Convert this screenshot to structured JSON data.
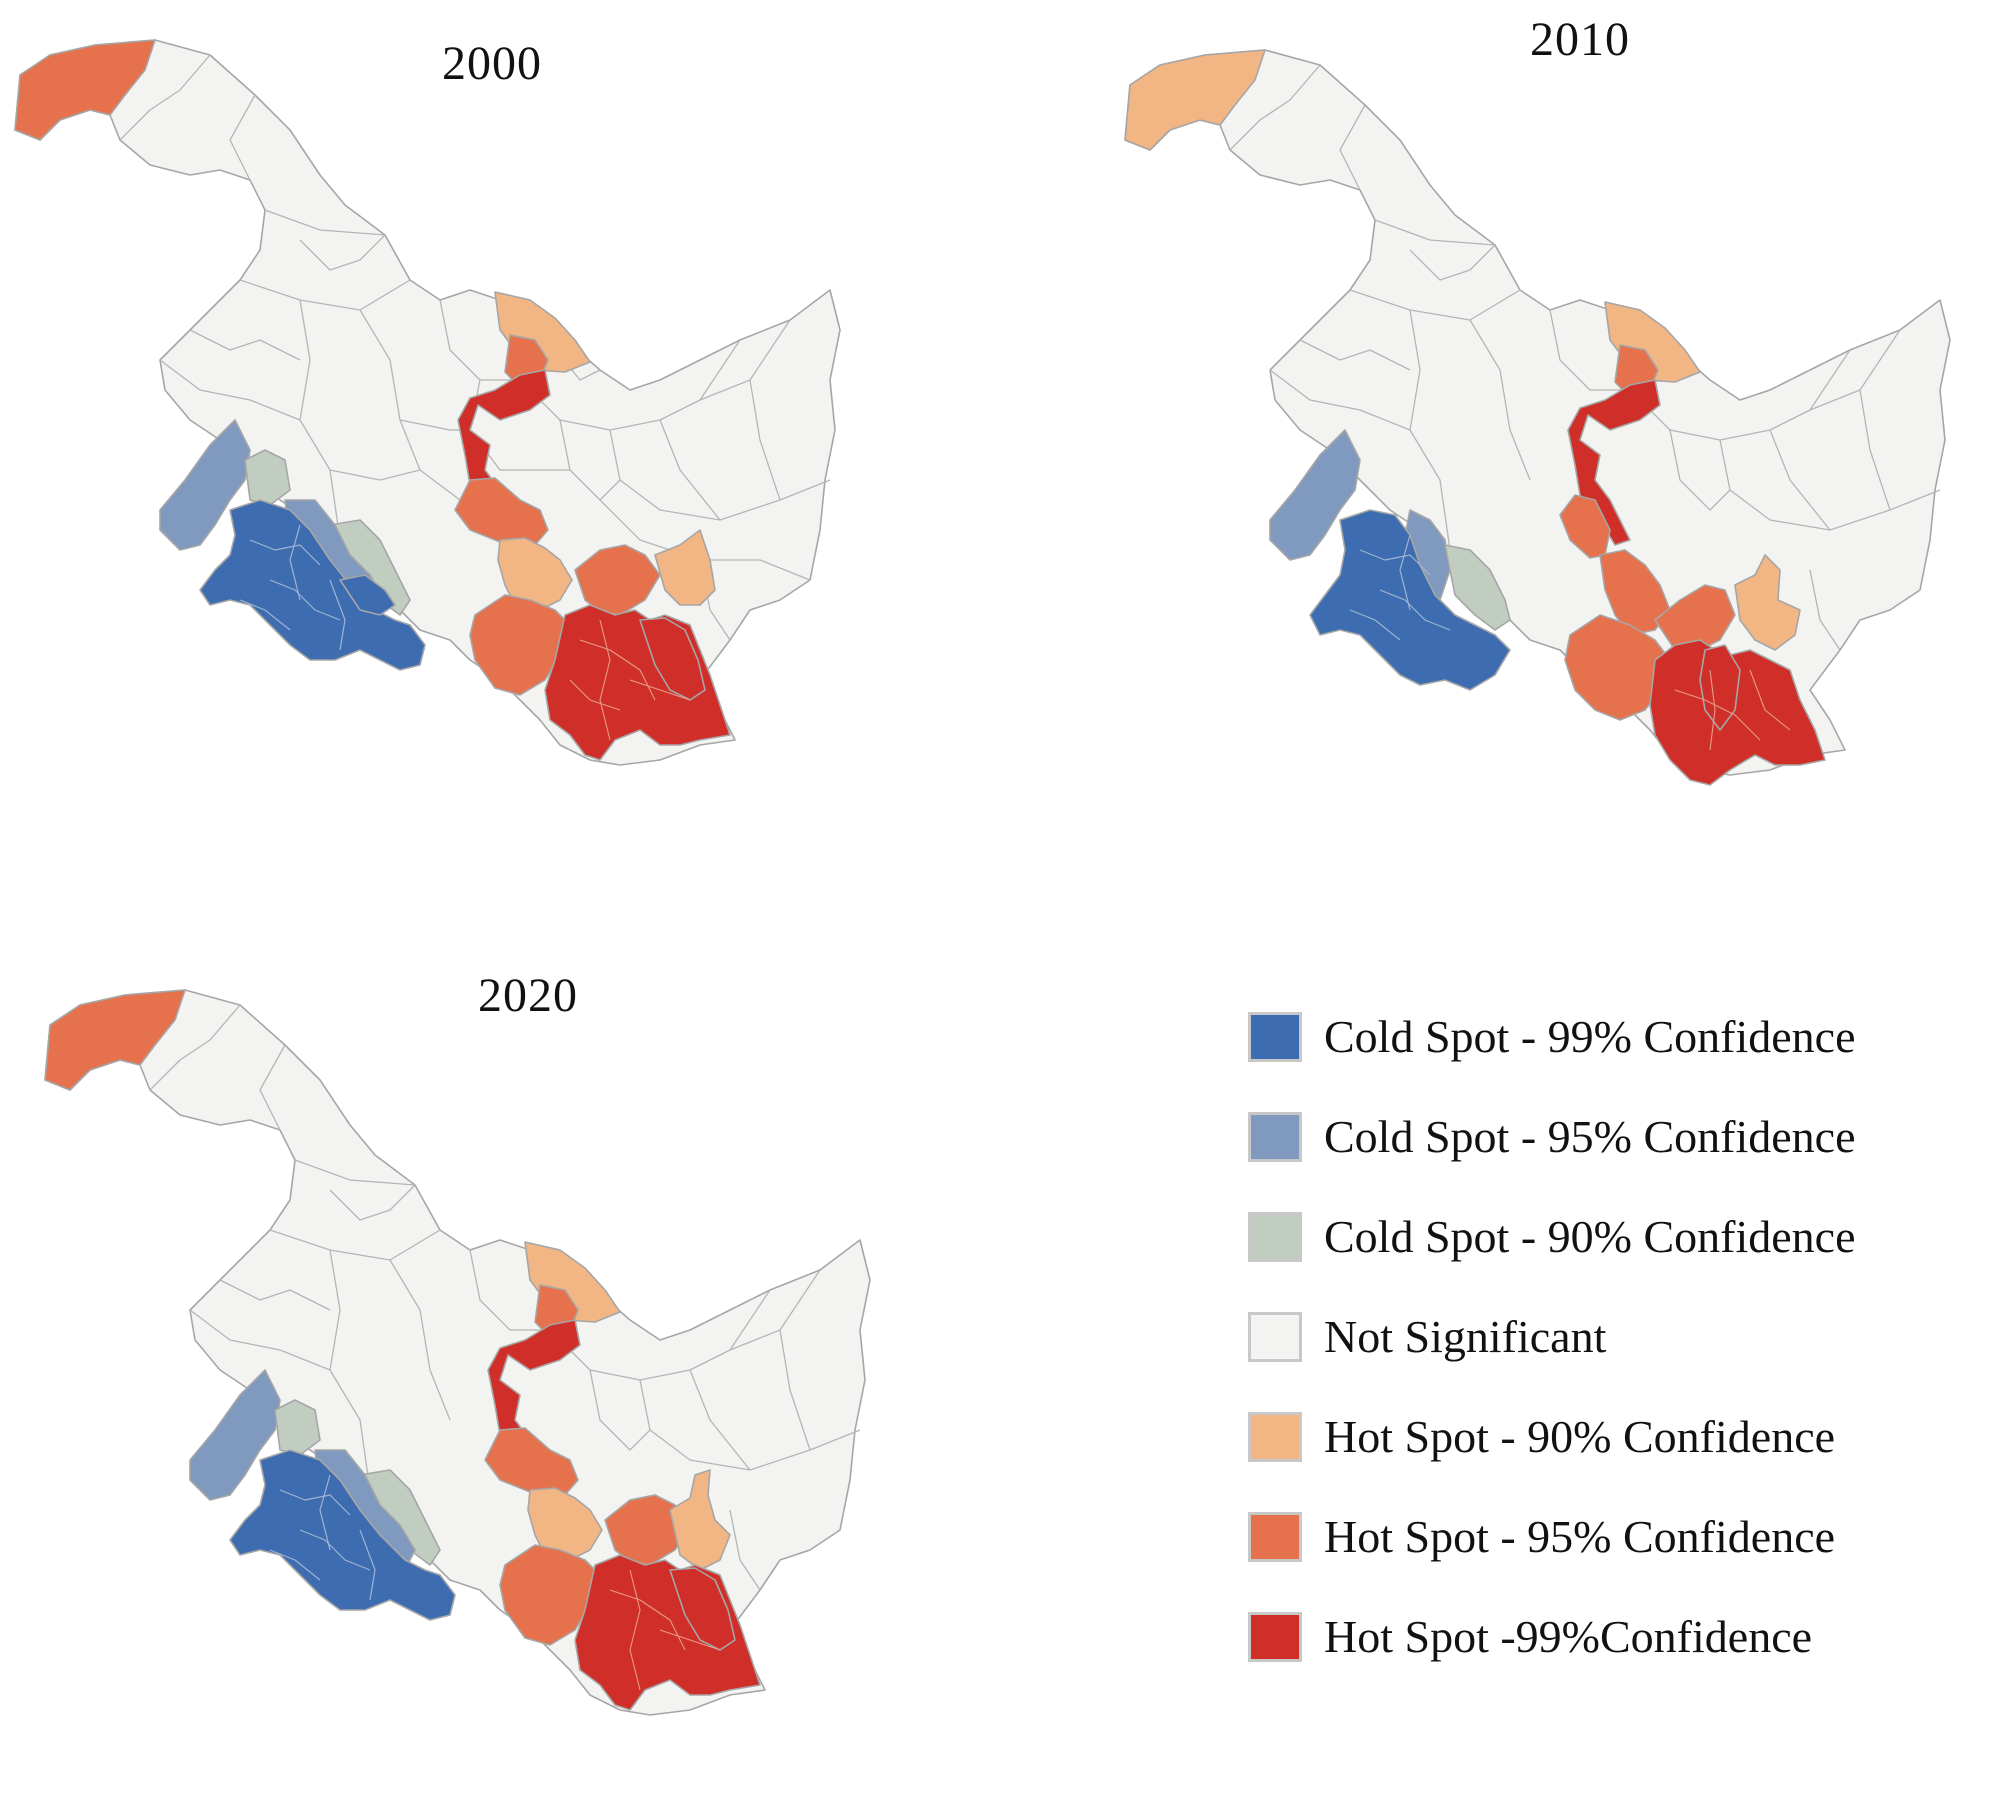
{
  "figure": {
    "panels": [
      {
        "year": "2000"
      },
      {
        "year": "2010"
      },
      {
        "year": "2020"
      }
    ]
  },
  "colors": {
    "cold99": "#3d6db0",
    "cold95": "#8099bf",
    "cold90": "#c2cdc2",
    "ns": "#f3f3f1",
    "hot90": "#f2b584",
    "hot95": "#e5714d",
    "hot99": "#cf2f28",
    "boundary": "#a6a6a6"
  },
  "legend": {
    "items": [
      {
        "label": "Cold Spot - 99% Confidence",
        "class": "cold99",
        "color": "#3d6db0"
      },
      {
        "label": "Cold Spot - 95% Confidence",
        "class": "cold95",
        "color": "#8099bf"
      },
      {
        "label": "Cold Spot - 90% Confidence",
        "class": "cold90",
        "color": "#c2cdc2"
      },
      {
        "label": "Not Significant",
        "class": "ns",
        "color": "#f3f3f1"
      },
      {
        "label": "Hot Spot - 90% Confidence",
        "class": "hot90",
        "color": "#f2b584"
      },
      {
        "label": "Hot Spot - 95% Confidence",
        "class": "hot95",
        "color": "#e5714d"
      },
      {
        "label": "Hot Spot -99%Confidence",
        "class": "hot99",
        "color": "#cf2f28"
      }
    ]
  }
}
